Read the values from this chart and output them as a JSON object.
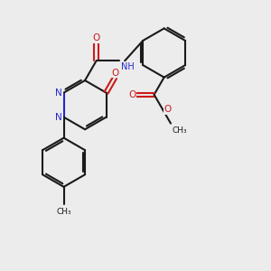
{
  "bg_color": "#ececec",
  "bond_color": "#1a1a1a",
  "nitrogen_color": "#2626cc",
  "oxygen_color": "#cc1a1a",
  "nh_color": "#2626cc",
  "fs": 7.5,
  "lw": 1.5,
  "fig_w": 3.0,
  "fig_h": 3.0,
  "dpi": 100,
  "xlim": [
    0,
    10
  ],
  "ylim": [
    0,
    10
  ]
}
